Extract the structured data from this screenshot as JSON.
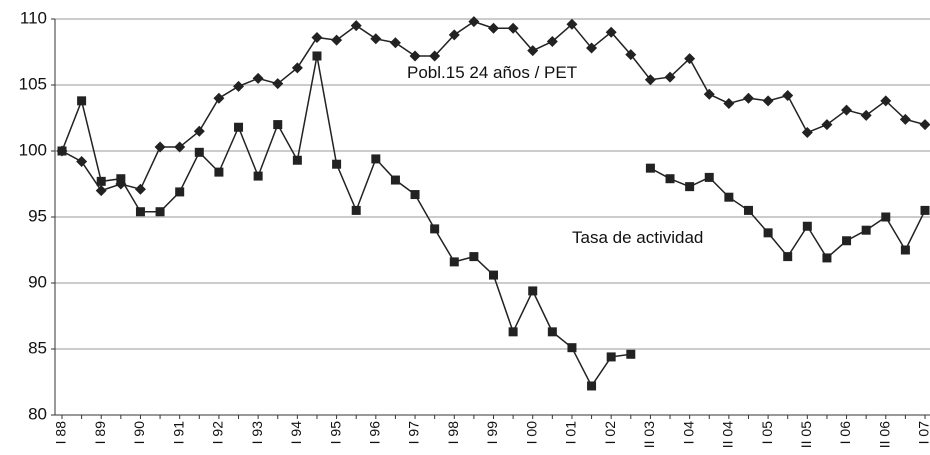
{
  "chart_data": {
    "type": "line",
    "categories": [
      "I 88",
      null,
      "I 89",
      null,
      "I 90",
      null,
      "I 91",
      null,
      "I 92",
      null,
      "I 93",
      null,
      "I 94",
      null,
      "I 95",
      null,
      "I 96",
      null,
      "I 97",
      null,
      "I 98",
      null,
      "I 99",
      null,
      "I 00",
      null,
      "I 01",
      null,
      "I 02",
      null,
      "II 03",
      null,
      "I 04",
      null,
      "II 04",
      null,
      "I 05",
      null,
      "II 05",
      null,
      "I 06",
      null,
      "II 06",
      null,
      "I 07"
    ],
    "series": [
      {
        "name": "Pobl.15 24 años / PET",
        "color": "#222222",
        "marker": "diamond",
        "values": [
          100,
          99.2,
          97.0,
          97.5,
          97.1,
          100.3,
          100.3,
          101.5,
          104.0,
          104.9,
          105.5,
          105.1,
          106.3,
          108.6,
          108.4,
          109.5,
          108.5,
          108.2,
          107.2,
          107.2,
          108.8,
          109.8,
          109.3,
          109.3,
          107.6,
          108.3,
          109.6,
          107.8,
          109.0,
          107.3,
          105.4,
          105.6,
          107.0,
          104.3,
          103.6,
          104.0,
          103.8,
          104.2,
          101.4,
          102.0,
          103.1,
          102.7,
          103.8,
          102.4,
          102.0
        ]
      },
      {
        "name": "Tasa de actividad",
        "color": "#222222",
        "marker": "square",
        "values": [
          100,
          103.8,
          97.7,
          97.9,
          95.4,
          95.4,
          96.9,
          99.9,
          98.4,
          101.8,
          98.1,
          102.0,
          99.3,
          107.2,
          99.0,
          95.5,
          99.4,
          97.8,
          96.7,
          94.1,
          91.6,
          92.0,
          90.6,
          86.3,
          89.4,
          86.3,
          85.1,
          82.2,
          84.4,
          84.6,
          null,
          null,
          null,
          null,
          null,
          null,
          null,
          null,
          null,
          null,
          null,
          null,
          null,
          null,
          null
        ]
      },
      {
        "color": "#222222",
        "marker": "square",
        "values": [
          null,
          null,
          null,
          null,
          null,
          null,
          null,
          null,
          null,
          null,
          null,
          null,
          null,
          null,
          null,
          null,
          null,
          null,
          null,
          null,
          null,
          null,
          null,
          null,
          null,
          null,
          null,
          null,
          null,
          null,
          98.7,
          97.9,
          97.3,
          98.0,
          96.5,
          95.5,
          93.8,
          92.0,
          94.3,
          91.9,
          93.2,
          94.0,
          95.0,
          92.5,
          95.5
        ]
      }
    ],
    "ylim": [
      80,
      110
    ],
    "yticks": [
      80,
      85,
      90,
      95,
      100,
      105,
      110
    ],
    "grid": true
  }
}
